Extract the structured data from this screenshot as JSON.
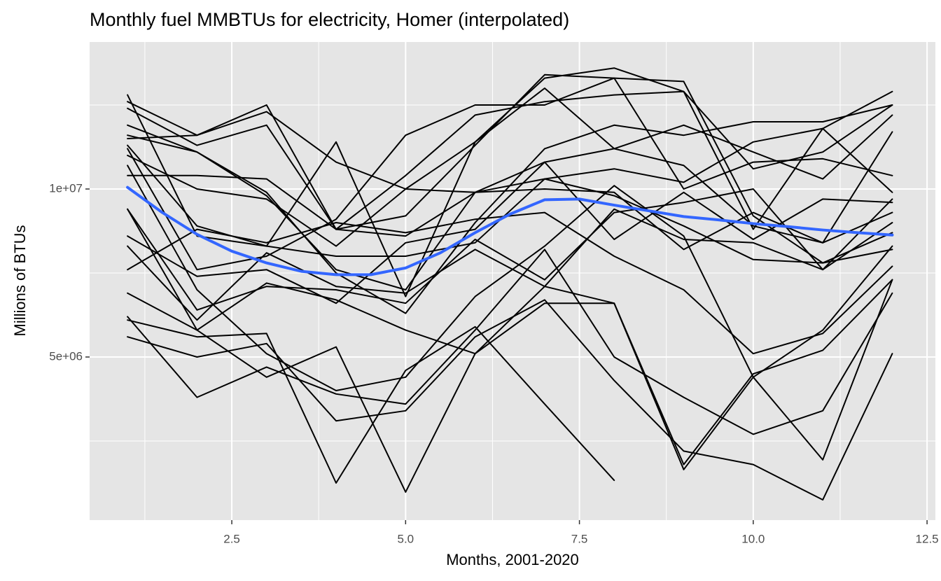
{
  "chart_data": {
    "type": "line",
    "title": "Monthly fuel MMBTUs for electricity, Homer (interpolated)",
    "x_label": "Months, 2001-2020",
    "y_label": "Millions of BTUs",
    "x": [
      1,
      2,
      3,
      4,
      5,
      6,
      7,
      8,
      9,
      10,
      11,
      12
    ],
    "xlim": [
      0.455,
      12.62
    ],
    "ylim": [
      146000,
      14375000
    ],
    "xticks": [
      {
        "value": 2.5,
        "label": "2.5"
      },
      {
        "value": 5,
        "label": "5.0"
      },
      {
        "value": 7.5,
        "label": "7.5"
      },
      {
        "value": 10,
        "label": "10.0"
      },
      {
        "value": 12.5,
        "label": "12.5"
      }
    ],
    "yticks": [
      {
        "value": 5000000,
        "label": "5e+06"
      },
      {
        "value": 10000000,
        "label": "1e+07"
      }
    ],
    "x_minor_grid": [
      1.25,
      3.75,
      6.25,
      8.75,
      11.25
    ],
    "y_minor_grid": [
      2500000,
      7500000,
      12500000
    ],
    "grid": true,
    "background": "#e5e5e5",
    "series": [
      {
        "color": "#000000",
        "values": [
          12600000.0,
          11600000.0,
          12500000.0,
          8800000.0,
          9200000.0,
          11300000.0,
          13400000.0,
          13300000.0,
          13200000.0,
          9200000.0,
          7800000.0,
          8200000.0
        ]
      },
      {
        "color": "#000000",
        "values": [
          12400000.0,
          11300000.0,
          11900000.0,
          8800000.0,
          10400000.0,
          12200000.0,
          12600000.0,
          12800000.0,
          12900000.0,
          10600000.0,
          11100000.0,
          12500000.0
        ]
      },
      {
        "color": "#000000",
        "values": [
          11500000.0,
          11600000.0,
          12300000.0,
          10800000.0,
          10000000.0,
          9900000.0,
          10300000.0,
          10600000.0,
          10200000.0,
          11400000.0,
          11800000.0,
          12900000.0
        ]
      },
      {
        "color": "#000000",
        "values": [
          11900000.0,
          11100000.0,
          9900000.0,
          7500000.0,
          6300000.0,
          9000000.0,
          11200000.0,
          11900000.0,
          11600000.0,
          12000000.0,
          12000000.0,
          12500000.0
        ]
      },
      {
        "color": "#000000",
        "values": [
          11300000.0,
          8900000.0,
          8300000.0,
          11400000.0,
          6800000.0,
          11400000.0,
          13300000.0,
          13600000.0,
          12900000.0,
          8800000.0,
          11800000.0,
          9900000.0
        ]
      },
      {
        "color": "#000000",
        "values": [
          11600000.0,
          11100000.0,
          9800000.0,
          7600000.0,
          7000000.0,
          9900000.0,
          10800000.0,
          11200000.0,
          10700000.0,
          8900000.0,
          8400000.0,
          11700000.0
        ]
      },
      {
        "color": "#000000",
        "values": [
          11000000.0,
          10000000.0,
          9700000.0,
          8300000.0,
          10000000.0,
          11400000.0,
          13000000.0,
          11200000.0,
          11900000.0,
          11100000.0,
          10300000.0,
          12200000.0
        ]
      },
      {
        "color": "#000000",
        "values": [
          10400000.0,
          10400000.0,
          10300000.0,
          8800000.0,
          8600000.0,
          9900000.0,
          10000000.0,
          9900000.0,
          8200000.0,
          9300000.0,
          8400000.0,
          9300000.0
        ]
      },
      {
        "color": "#000000",
        "values": [
          11200000.0,
          7600000.0,
          8000000.0,
          9100000.0,
          11600000.0,
          12500000.0,
          12500000.0,
          13300000.0,
          10000000.0,
          10800000.0,
          10900000.0,
          10400000.0
        ]
      },
      {
        "color": "#000000",
        "values": [
          12800000.0,
          8600000.0,
          8300000.0,
          8000000.0,
          8000000.0,
          8400000.0,
          10300000.0,
          9800000.0,
          8900000.0,
          7900000.0,
          7800000.0,
          8700000.0
        ]
      },
      {
        "color": "#000000",
        "values": [
          10700000.0,
          7000000.0,
          5100000.0,
          4000000.0,
          4400000.0,
          6800000.0,
          8300000.0,
          10100000.0,
          8600000.0,
          4400000.0,
          5800000.0,
          8300000.0
        ]
      },
      {
        "color": "#000000",
        "values": [
          9400000.0,
          6400000.0,
          7100000.0,
          7000000.0,
          6600000.0,
          8500000.0,
          7300000.0,
          9300000.0,
          9600000.0,
          10000000.0,
          7600000.0,
          9700000.0
        ]
      },
      {
        "color": "#000000",
        "values": [
          8600000.0,
          7400000.0,
          7600000.0,
          6600000.0,
          8400000.0,
          8800000.0,
          10800000.0,
          8500000.0,
          9900000.0,
          8500000.0,
          9700000.0,
          9600000.0
        ]
      },
      {
        "color": "#000000",
        "values": [
          8300000.0,
          6100000.0,
          8100000.0,
          7100000.0,
          6900000.0,
          8200000.0,
          7100000.0,
          9400000.0,
          8500000.0,
          8400000.0,
          7600000.0,
          9000000.0
        ]
      },
      {
        "color": "#000000",
        "values": [
          7600000.0,
          8800000.0,
          8400000.0,
          9000000.0,
          8700000.0,
          9100000.0,
          9300000.0,
          8000000.0,
          7000000.0,
          5100000.0,
          5700000.0,
          7700000.0
        ]
      },
      {
        "color": "#000000",
        "values": [
          6900000.0,
          5800000.0,
          7200000.0,
          6700000.0,
          5800000.0,
          5100000.0,
          6600000.0,
          6600000.0,
          1800000.0,
          4500000.0,
          5200000.0,
          7300000.0
        ]
      },
      {
        "color": "#000000",
        "values": [
          6100000.0,
          5600000.0,
          5700000.0,
          1250000.0,
          4600000.0,
          5900000.0,
          3600000.0,
          1330000.0,
          null,
          null,
          null,
          null
        ]
      },
      {
        "color": "#000000",
        "values": [
          5600000.0,
          5000000.0,
          5400000.0,
          3100000.0,
          3400000.0,
          5600000.0,
          6700000.0,
          4300000.0,
          2200000.0,
          1800000.0,
          750000.0,
          5100000.0
        ]
      },
      {
        "color": "#000000",
        "values": [
          6200000.0,
          3800000.0,
          4700000.0,
          3900000.0,
          3600000.0,
          5800000.0,
          8200000.0,
          5000000.0,
          3800000.0,
          2700000.0,
          3400000.0,
          6900000.0
        ]
      },
      {
        "color": "#000000",
        "values": [
          9400000.0,
          5800000.0,
          4400000.0,
          5300000.0,
          980000.0,
          5100000.0,
          7100000.0,
          6600000.0,
          1650000.0,
          4400000.0,
          1940000.0,
          7300000.0
        ]
      },
      {
        "color": "#3366FF",
        "width": 4,
        "x": [
          1,
          1.5,
          2,
          2.5,
          3,
          3.5,
          4,
          4.5,
          5,
          5.5,
          6,
          6.5,
          7,
          7.5,
          8,
          8.5,
          9,
          9.5,
          10,
          10.5,
          11,
          11.5,
          12
        ],
        "values": [
          10050000.0,
          9300000.0,
          8650000.0,
          8150000.0,
          7800000.0,
          7550000.0,
          7450000.0,
          7450000.0,
          7650000.0,
          8100000.0,
          8700000.0,
          9250000.0,
          9680000.0,
          9700000.0,
          9520000.0,
          9350000.0,
          9180000.0,
          9080000.0,
          8970000.0,
          8880000.0,
          8780000.0,
          8700000.0,
          8630000.0
        ]
      }
    ]
  }
}
